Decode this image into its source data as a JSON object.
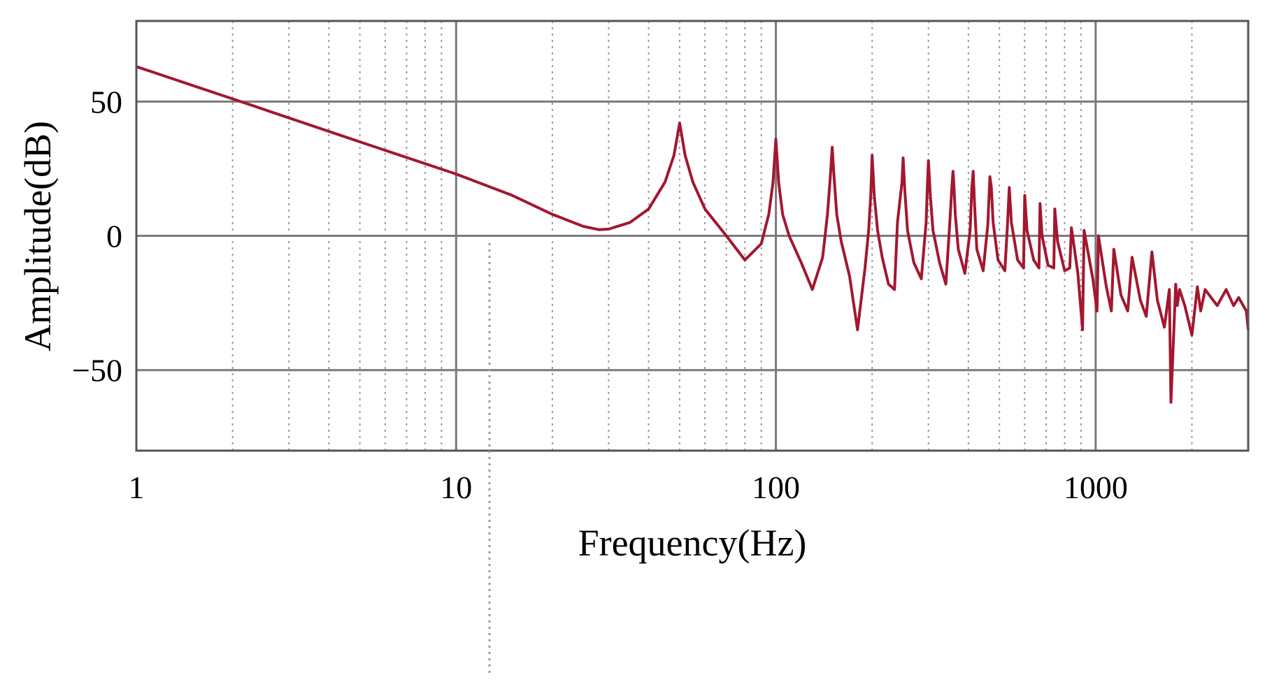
{
  "chart_data": {
    "type": "line",
    "title": "",
    "xlabel": "Frequency(Hz)",
    "ylabel": "Amplitude(dB)",
    "x_scale": "log",
    "xlim": [
      1,
      3000
    ],
    "ylim": [
      -80,
      80
    ],
    "x_ticks": [
      1,
      10,
      100,
      1000
    ],
    "x_tick_labels": [
      "1",
      "10",
      "100",
      "1000"
    ],
    "y_ticks": [
      -50,
      0,
      50
    ],
    "y_tick_labels": [
      "−50",
      "0",
      "50"
    ],
    "grid": true,
    "minor_grid": true,
    "line_color": "#a3172f",
    "grid_color": "#7a7a7a",
    "series": [
      {
        "x": [
          1,
          2,
          5,
          10,
          15,
          20,
          25,
          28,
          30,
          35,
          40,
          45,
          48,
          50,
          52,
          55,
          60,
          70,
          80,
          90,
          95,
          98,
          100,
          102,
          105,
          110,
          120,
          130,
          140,
          145,
          148,
          150,
          152,
          155,
          160,
          170,
          180,
          190,
          195,
          198,
          200,
          203,
          208,
          215,
          225,
          235,
          240,
          248,
          250,
          253,
          258,
          270,
          285,
          295,
          298,
          300,
          304,
          310,
          325,
          340,
          350,
          355,
          358,
          360,
          364,
          372,
          390,
          405,
          410,
          414,
          418,
          425,
          445,
          460,
          467,
          472,
          478,
          495,
          520,
          530,
          537,
          545,
          570,
          595,
          600,
          610,
          640,
          665,
          670,
          680,
          710,
          740,
          745,
          760,
          800,
          830,
          840,
          880,
          910,
          920,
          980,
          1010,
          1020,
          1080,
          1120,
          1140,
          1200,
          1260,
          1300,
          1380,
          1440,
          1500,
          1560,
          1640,
          1700,
          1720,
          1780,
          1800,
          1830,
          1900,
          2000,
          2080,
          2130,
          2200,
          2400,
          2560,
          2700,
          2800,
          2960,
          3000
        ],
        "y": [
          63,
          51,
          35,
          23,
          15,
          8,
          3.5,
          2.3,
          2.5,
          5,
          10,
          20,
          30,
          42,
          30,
          20,
          10,
          0,
          -9,
          -3,
          8,
          20,
          36,
          20,
          8,
          0,
          -10,
          -20,
          -8,
          8,
          22,
          33,
          22,
          8,
          -2,
          -15,
          -35,
          -12,
          2,
          15,
          30,
          15,
          2,
          -8,
          -18,
          -20,
          5,
          20,
          29,
          17,
          2,
          -10,
          -16,
          5,
          20,
          28,
          15,
          2,
          -10,
          -18,
          5,
          18,
          24,
          20,
          8,
          -5,
          -14,
          2,
          18,
          24,
          12,
          -5,
          -13,
          4,
          22,
          18,
          5,
          -9,
          -13,
          4,
          18,
          5,
          -9,
          -12,
          15,
          2,
          -9,
          -12,
          12,
          0,
          -11,
          -12,
          10,
          -2,
          -13,
          -12,
          3,
          -14,
          -35,
          2,
          -16,
          -28,
          0,
          -19,
          -28,
          -5,
          -22,
          -28,
          -8,
          -24,
          -30,
          -6,
          -24,
          -34,
          -20,
          -62,
          -18,
          -26,
          -20,
          -26,
          -37,
          -19,
          -28,
          -20,
          -26,
          -20,
          -26,
          -23,
          -28,
          -35
        ]
      }
    ]
  }
}
